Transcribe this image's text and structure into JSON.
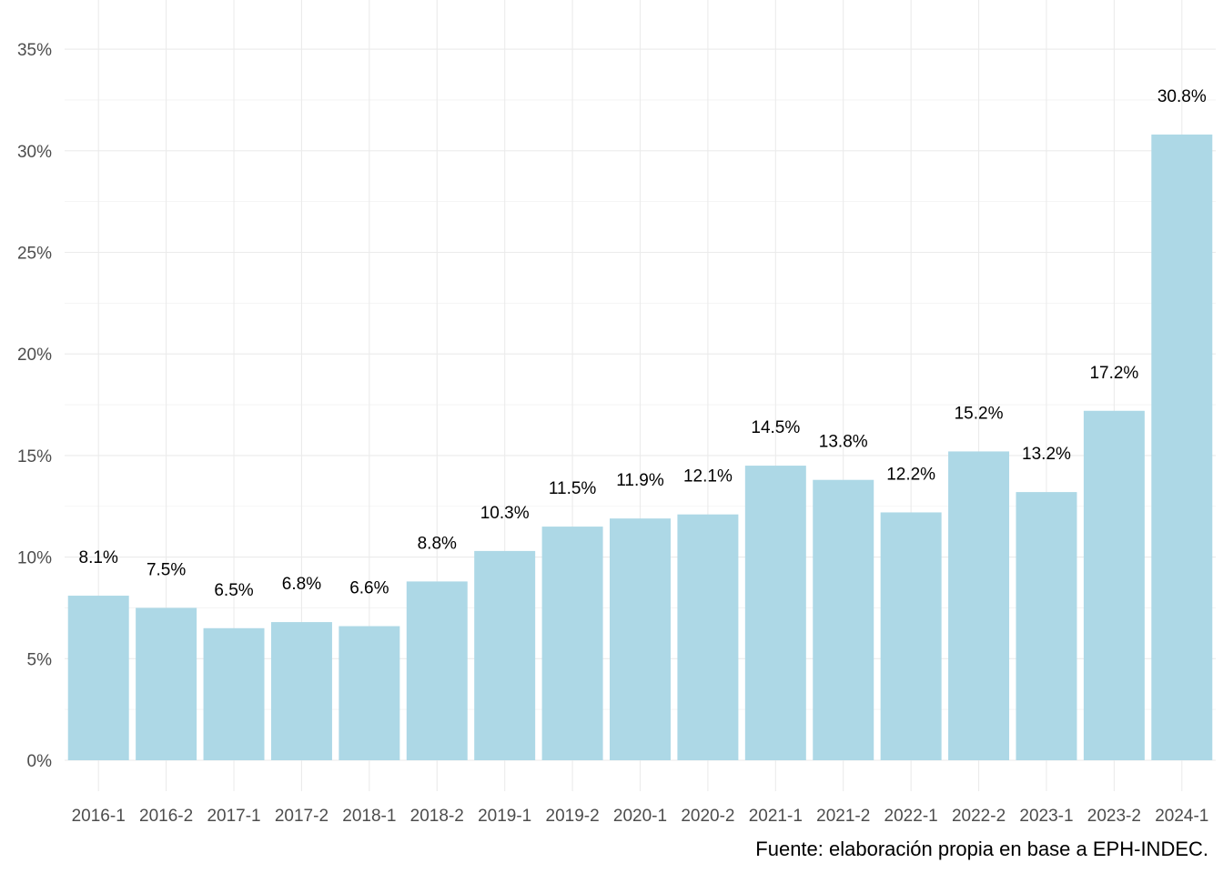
{
  "chart_data": {
    "type": "bar",
    "categories": [
      "2016-1",
      "2016-2",
      "2017-1",
      "2017-2",
      "2018-1",
      "2018-2",
      "2019-1",
      "2019-2",
      "2020-1",
      "2020-2",
      "2021-1",
      "2021-2",
      "2022-1",
      "2022-2",
      "2023-1",
      "2023-2",
      "2024-1"
    ],
    "values": [
      8.1,
      7.5,
      6.5,
      6.8,
      6.6,
      8.8,
      10.3,
      11.5,
      11.9,
      12.1,
      14.5,
      13.8,
      12.2,
      15.2,
      13.2,
      17.2,
      30.8
    ],
    "data_labels": [
      "8.1%",
      "7.5%",
      "6.5%",
      "6.8%",
      "6.6%",
      "8.8%",
      "10.3%",
      "11.5%",
      "11.9%",
      "12.1%",
      "14.5%",
      "13.8%",
      "12.2%",
      "15.2%",
      "13.2%",
      "17.2%",
      "30.8%"
    ],
    "y_ticks": [
      0,
      5,
      10,
      15,
      20,
      25,
      30,
      35
    ],
    "y_tick_labels": [
      "0%",
      "5%",
      "10%",
      "15%",
      "20%",
      "25%",
      "30%",
      "35%"
    ],
    "ylim": [
      0,
      37.5
    ],
    "grid": true,
    "bar_color": "#ADD8E6",
    "caption": "Fuente: elaboración propia en base a EPH-INDEC."
  }
}
